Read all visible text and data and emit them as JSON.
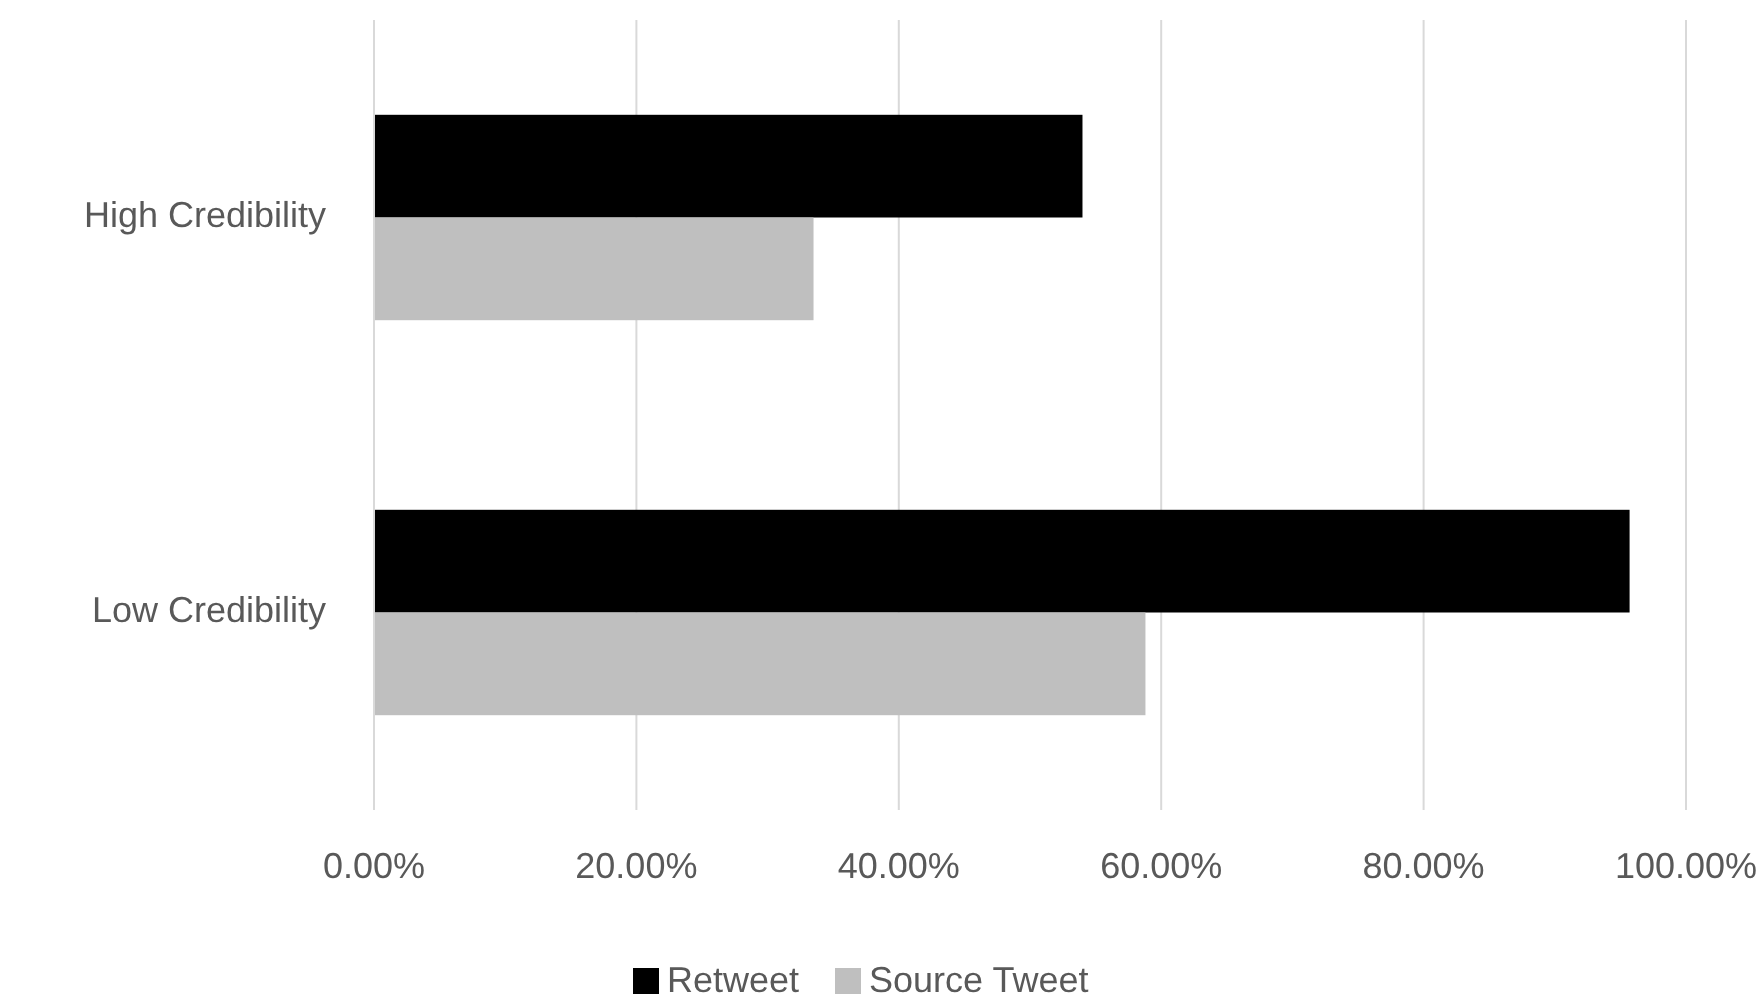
{
  "chart_data": {
    "type": "bar",
    "orientation": "horizontal",
    "categories": [
      "High Credibility",
      "Low Credibility"
    ],
    "series": [
      {
        "name": "Retweet",
        "color": "#000000",
        "values": [
          54,
          95.7
        ]
      },
      {
        "name": "Source Tweet",
        "color": "#bfbfbf",
        "values": [
          33.5,
          58.8
        ]
      }
    ],
    "xlim": [
      0,
      100
    ],
    "xticks": [
      {
        "value": 0,
        "label": "0.00%"
      },
      {
        "value": 20,
        "label": "20.00%"
      },
      {
        "value": 40,
        "label": "40.00%"
      },
      {
        "value": 60,
        "label": "60.00%"
      },
      {
        "value": 80,
        "label": "80.00%"
      },
      {
        "value": 100,
        "label": "100.00%"
      }
    ],
    "grid": "x",
    "legend": "bottom"
  }
}
